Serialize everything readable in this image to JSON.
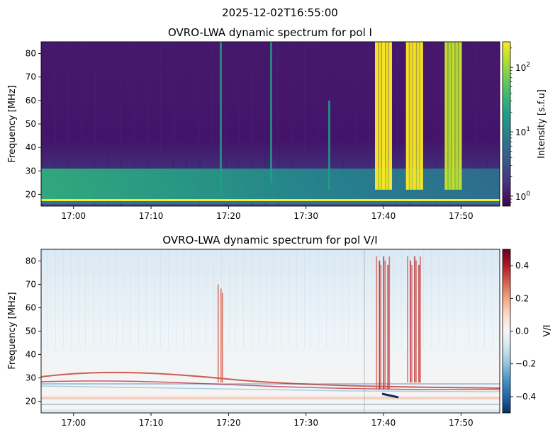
{
  "suptitle": "2025-12-02T16:55:00",
  "chart_data": [
    {
      "type": "heatmap",
      "title": "OVRO-LWA dynamic spectrum for pol I",
      "ylabel": "Frequency [MHz]",
      "xlim": [
        "16:55:49",
        "17:55:00"
      ],
      "ylim": [
        15,
        85
      ],
      "x_ticks": [
        "17:00",
        "17:10",
        "17:20",
        "17:30",
        "17:40",
        "17:50"
      ],
      "y_ticks": [
        "20",
        "30",
        "40",
        "50",
        "60",
        "70",
        "80"
      ],
      "colorbar": {
        "label": "Intensity [s.f.u]",
        "scale": "log",
        "range": [
          0.7,
          250
        ],
        "ticks": [
          {
            "base": "10",
            "exp": "0",
            "value": 1
          },
          {
            "base": "10",
            "exp": "1",
            "value": 10
          },
          {
            "base": "10",
            "exp": "2",
            "value": 100
          }
        ]
      },
      "colormap": "viridis",
      "background_level": 1.0,
      "bursts": [
        {
          "time": "17:19:00",
          "freq_range": [
            20,
            85
          ],
          "intensity": 20
        },
        {
          "time": "17:25:30",
          "freq_range": [
            25,
            85
          ],
          "intensity": 15
        },
        {
          "time": "17:33:00",
          "freq_range": [
            22,
            60
          ],
          "intensity": 15
        },
        {
          "time": "17:40:00",
          "freq_range": [
            22,
            85
          ],
          "intensity": 250
        },
        {
          "time": "17:44:00",
          "freq_range": [
            22,
            85
          ],
          "intensity": 250
        },
        {
          "time": "17:49:00",
          "freq_range": [
            22,
            85
          ],
          "intensity": 120
        }
      ]
    },
    {
      "type": "heatmap",
      "title": "OVRO-LWA dynamic spectrum for pol V/I",
      "ylabel": "Frequency [MHz]",
      "xlim": [
        "16:55:49",
        "17:55:00"
      ],
      "ylim": [
        15,
        85
      ],
      "x_ticks": [
        "17:00",
        "17:10",
        "17:20",
        "17:30",
        "17:40",
        "17:50"
      ],
      "y_ticks": [
        "20",
        "30",
        "40",
        "50",
        "60",
        "70",
        "80"
      ],
      "colorbar": {
        "label": "V/I",
        "scale": "linear",
        "range": [
          -0.5,
          0.5
        ],
        "ticks": [
          "−0.4",
          "−0.2",
          "0.0",
          "0.2",
          "0.4"
        ]
      },
      "colormap": "RdBu_r",
      "bursts": [
        {
          "time": "17:19:00",
          "freq_range": [
            28,
            70
          ],
          "value": 0.3
        },
        {
          "time": "17:40:00",
          "freq_range": [
            25,
            82
          ],
          "value": 0.4
        },
        {
          "time": "17:44:00",
          "freq_range": [
            28,
            82
          ],
          "value": 0.4
        }
      ]
    }
  ]
}
